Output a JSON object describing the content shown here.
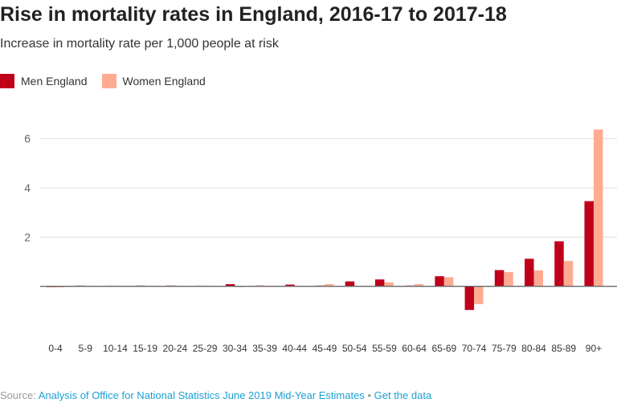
{
  "chart_data": {
    "type": "bar",
    "title": "Rise in mortality rates in England, 2016-17 to 2017-18",
    "subtitle": "Increase in mortality rate per 1,000 people at risk",
    "categories": [
      "0-4",
      "5-9",
      "10-14",
      "15-19",
      "20-24",
      "25-29",
      "30-34",
      "35-39",
      "40-44",
      "45-49",
      "50-54",
      "55-59",
      "60-64",
      "65-69",
      "70-74",
      "75-79",
      "80-84",
      "85-89",
      "90+"
    ],
    "series": [
      {
        "name": "Men England",
        "color": "#c0001b",
        "values": [
          -0.03,
          0.03,
          0.0,
          0.03,
          0.03,
          0.0,
          0.09,
          0.03,
          0.07,
          0.03,
          0.2,
          0.28,
          0.03,
          0.41,
          -0.96,
          0.66,
          1.12,
          1.83,
          3.46
        ]
      },
      {
        "name": "Women England",
        "color": "#ffab91",
        "values": [
          -0.04,
          0.0,
          0.0,
          0.0,
          0.02,
          0.02,
          -0.03,
          0.0,
          0.0,
          0.09,
          0.0,
          0.16,
          0.09,
          0.37,
          -0.72,
          0.58,
          0.65,
          1.03,
          6.37
        ]
      }
    ],
    "yticks": [
      2,
      4,
      6
    ],
    "ylim": [
      -1.2,
      6.5
    ],
    "grid": true,
    "legend": "top-left"
  },
  "footer": {
    "source_label": "Source:",
    "source_link": "Analysis of Office for National Statistics June 2019 Mid-Year Estimates",
    "separator": "•",
    "get_data": "Get the data"
  }
}
